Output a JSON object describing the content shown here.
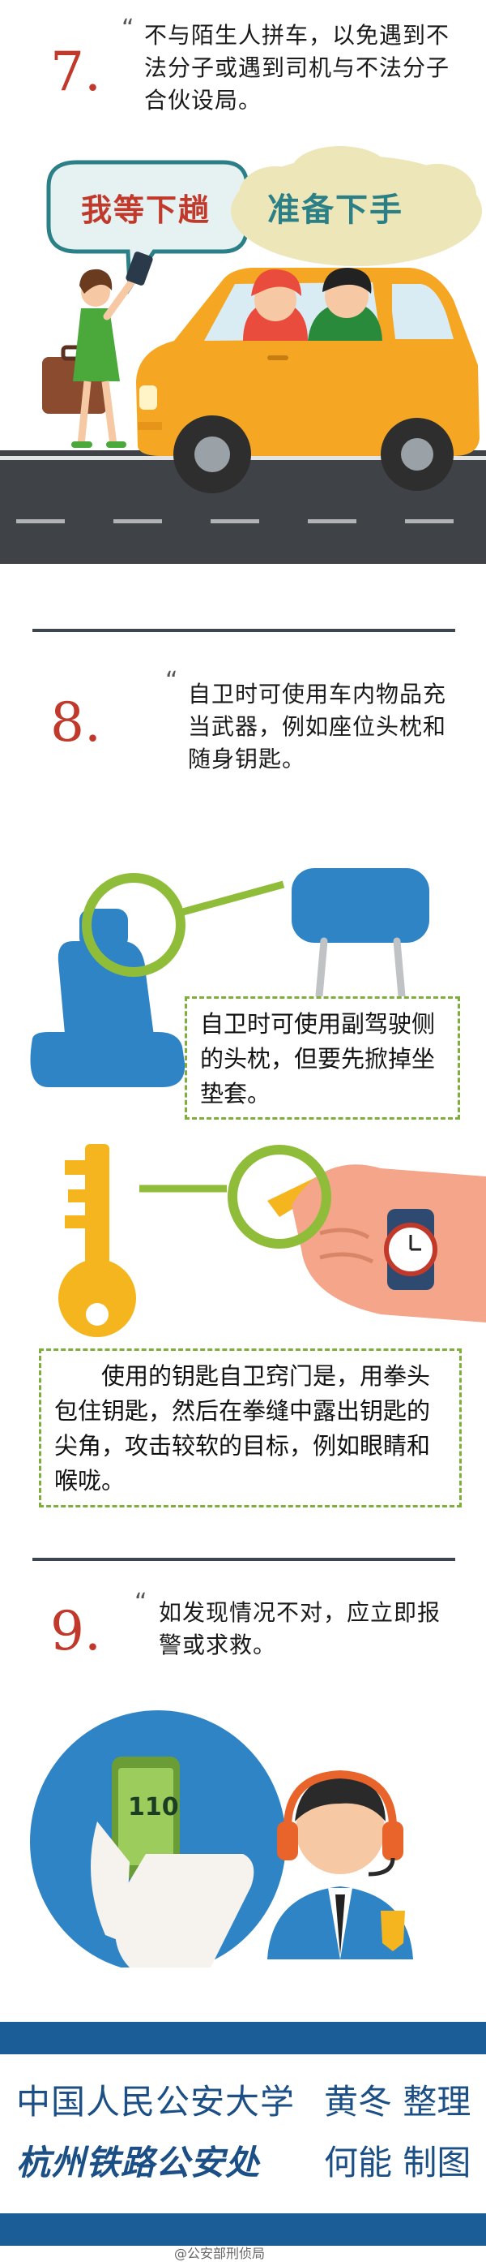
{
  "section7": {
    "number": "7.",
    "quote_open": "“",
    "text": "不与陌生人拼车，以免遇到不法分子或遇到司机与不法分子合伙设局。",
    "quote_close": "”",
    "bubble_left": "我等下趟",
    "bubble_right": "准备下手"
  },
  "section8": {
    "number": "8.",
    "quote_open": "“",
    "text": "自卫时可使用车内物品充当武器，例如座位头枕和随身钥匙。",
    "quote_close": "”",
    "box1": "自卫时可使用副驾驶侧的头枕，但要先掀掉坐垫套。",
    "box2": "使用的钥匙自卫窍门是，用拳头包住钥匙，然后在拳缝中露出钥匙的尖角，攻击较软的目标，例如眼睛和喉咙。"
  },
  "section9": {
    "number": "9.",
    "quote_open": "“",
    "text": "如发现情况不对，应立即报警或求救。",
    "quote_close": "”",
    "phone_number": "110"
  },
  "credits": {
    "line1_org": "中国人民公安大学",
    "line1_person": "黄冬 整理",
    "line2_org": "杭州铁路公安处",
    "line2_person": "何能 制图"
  },
  "watermark": "@公安部刑侦局",
  "colors": {
    "accent_red": "#c0392b",
    "brand_blue": "#1b5d97",
    "green": "#7fae3c",
    "car_orange": "#f5a623"
  }
}
